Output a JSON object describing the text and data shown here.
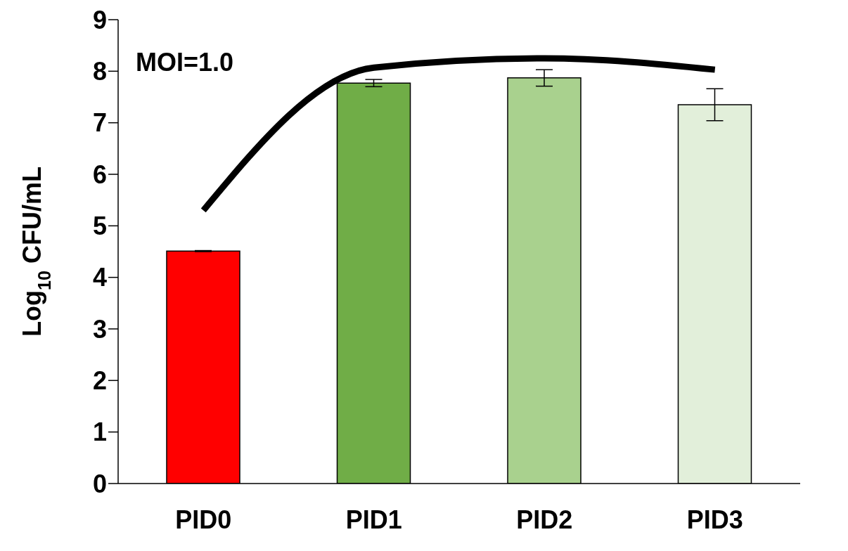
{
  "chart_data": {
    "type": "bar",
    "ylabel": "Log$_{10}$ CFU/mL",
    "annotations": [
      "MOI=1.0"
    ],
    "categories": [
      "PID0",
      "PID1",
      "PID2",
      "PID3"
    ],
    "series": [
      {
        "values": [
          4.51,
          7.77,
          7.87,
          7.35
        ],
        "colors": [
          "#ff0000",
          "#70ad47",
          "#a9d18e",
          "#e2efda"
        ],
        "errors": [
          0.01,
          0.07,
          0.16,
          0.31
        ]
      },
      {
        "type": "line",
        "color": "#000000",
        "values": [
          5.3,
          8.07,
          8.25,
          8.03
        ]
      }
    ],
    "ylim": [
      0,
      9
    ],
    "yticks": [
      0,
      1,
      2,
      3,
      4,
      5,
      6,
      7,
      8,
      9
    ],
    "grid": false,
    "legend": false,
    "marker": "none",
    "line_style": "solid"
  }
}
